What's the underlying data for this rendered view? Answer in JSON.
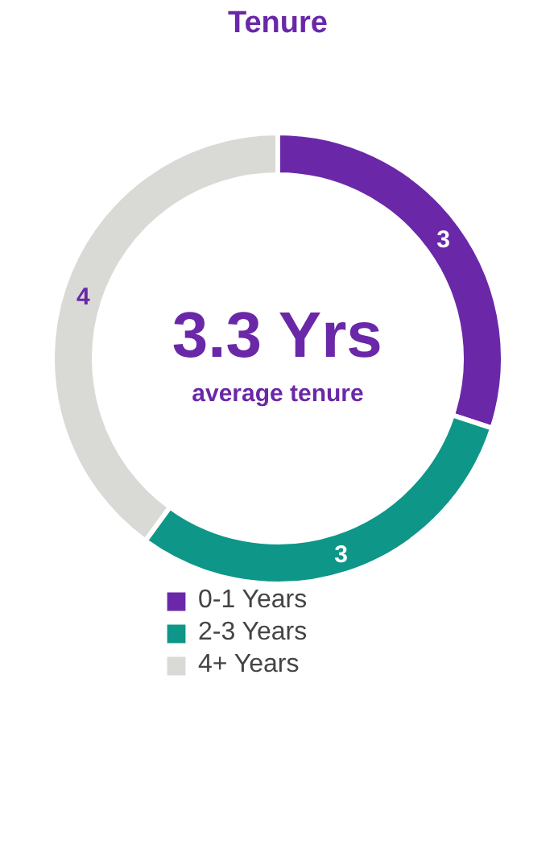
{
  "chart_data": {
    "type": "donut",
    "title": "Tenure",
    "categories": [
      "0-1 Years",
      "2-3 Years",
      "4+ Years"
    ],
    "values": [
      3,
      3,
      4
    ],
    "colors": [
      "#6a28a8",
      "#0e9688",
      "#d9d9d6"
    ],
    "data_labels": true,
    "legend": "bottom",
    "annotations": [
      "3.3 Yrs",
      "average tenure"
    ]
  }
}
